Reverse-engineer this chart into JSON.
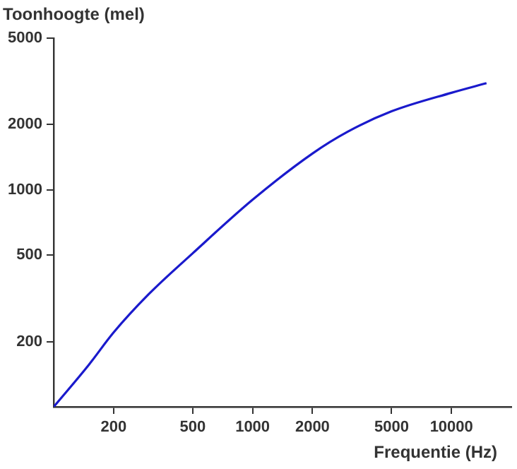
{
  "chart_data": {
    "type": "line",
    "xlabel": "Frequentie (Hz)",
    "ylabel": "Toonhoogte (mel)",
    "log": "xy",
    "grid": false,
    "marker": "none",
    "line_style": "solid",
    "x": [
      100,
      150,
      200,
      300,
      500,
      1000,
      2000,
      3000,
      5000,
      10000,
      15000
    ],
    "values": [
      100,
      156,
      220,
      330,
      510,
      900,
      1470,
      1850,
      2300,
      2800,
      3100
    ],
    "color": "#1a1acc",
    "xlim": [
      100,
      20000
    ],
    "xticks": [
      200,
      500,
      1000,
      2000,
      5000,
      10000
    ],
    "ylim": [
      100,
      5000
    ],
    "yticks": [
      200,
      500,
      1000,
      2000,
      5000
    ]
  }
}
